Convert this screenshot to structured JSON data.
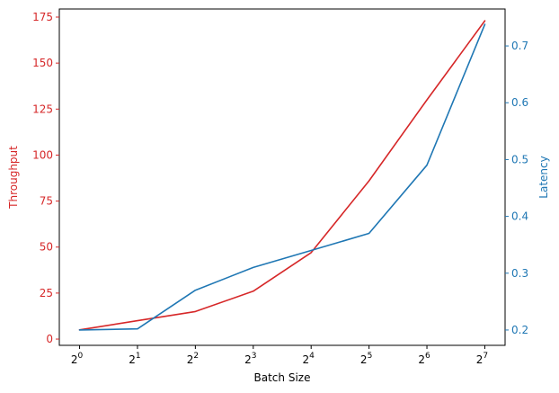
{
  "chart_data": {
    "type": "line",
    "title": "",
    "xlabel": "Batch Size",
    "ylabel_left": "Throughput",
    "ylabel_right": "Latency",
    "x_scale": "log2",
    "x": [
      1,
      2,
      4,
      8,
      16,
      32,
      64,
      128
    ],
    "x_tick_labels": [
      {
        "base": "2",
        "exp": "0"
      },
      {
        "base": "2",
        "exp": "1"
      },
      {
        "base": "2",
        "exp": "2"
      },
      {
        "base": "2",
        "exp": "3"
      },
      {
        "base": "2",
        "exp": "4"
      },
      {
        "base": "2",
        "exp": "5"
      },
      {
        "base": "2",
        "exp": "6"
      },
      {
        "base": "2",
        "exp": "7"
      }
    ],
    "left_axis": {
      "color": "#d62728",
      "ylim": [
        -3.4,
        179.4
      ],
      "ticks": [
        0,
        25,
        50,
        75,
        100,
        125,
        150,
        175
      ]
    },
    "right_axis": {
      "color": "#1f77b4",
      "ylim": [
        0.173,
        0.765
      ],
      "ticks": [
        0.2,
        0.3,
        0.4,
        0.5,
        0.6,
        0.7
      ]
    },
    "series": [
      {
        "axis": "left",
        "color": "#d62728",
        "values": [
          5,
          10,
          15,
          26,
          47,
          86,
          130,
          173
        ]
      },
      {
        "axis": "right",
        "color": "#1f77b4",
        "values": [
          0.2,
          0.202,
          0.27,
          0.31,
          0.34,
          0.37,
          0.49,
          0.738
        ]
      }
    ],
    "grid": false
  }
}
